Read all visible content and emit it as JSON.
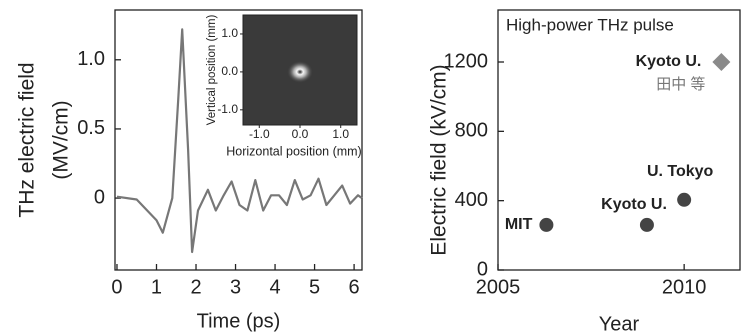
{
  "chart_data": [
    {
      "type": "line",
      "xlabel": "Time (ps)",
      "ylabel": [
        "THz electric field",
        "(MV/cm)"
      ],
      "x": [
        0,
        0.5,
        1.0,
        1.16,
        1.4,
        1.55,
        1.65,
        1.8,
        1.9,
        2.05,
        2.3,
        2.5,
        2.7,
        2.9,
        3.1,
        3.3,
        3.5,
        3.7,
        3.9,
        4.1,
        4.3,
        4.5,
        4.7,
        4.9,
        5.1,
        5.3,
        5.5,
        5.7,
        5.9,
        6.1,
        6.2
      ],
      "series": [
        {
          "color": "#777777",
          "values": [
            0.01,
            -0.01,
            -0.16,
            -0.25,
            0,
            0.71,
            1.22,
            0.35,
            -0.39,
            -0.09,
            0.06,
            -0.09,
            0.02,
            0.12,
            -0.05,
            -0.09,
            0.13,
            -0.09,
            0.02,
            0.02,
            -0.05,
            0.13,
            -0.01,
            0.02,
            0.14,
            -0.05,
            0.02,
            0.09,
            -0.04,
            0.02,
            0
          ]
        }
      ],
      "xlim": [
        -0.05,
        6.2
      ],
      "xticks": [
        0,
        1,
        2,
        3,
        4,
        5,
        6
      ],
      "ylim": [
        -0.52,
        1.36
      ],
      "yticks": [
        0,
        0.5,
        {
          "value": 1,
          "label": "1.0"
        }
      ],
      "inset": {
        "xlabel": "Horizontal position (mm)",
        "ylabel": "Vertical position (mm)",
        "xlim": [
          -1.4,
          1.4
        ],
        "ylim": [
          -1.4,
          1.5
        ],
        "xticks": [
          {
            "value": -1,
            "label": "-1.0"
          },
          {
            "value": 0,
            "label": "0.0"
          },
          {
            "value": 1,
            "label": "1.0"
          }
        ],
        "yticks": [
          {
            "value": -1,
            "label": "-1.0"
          },
          {
            "value": 0,
            "label": "0.0"
          },
          {
            "value": 1,
            "label": "1.0"
          }
        ]
      }
    },
    {
      "type": "scatter",
      "title": "High-power THz pulse",
      "xlabel": "Year",
      "ylabel": "Electric field (kV/cm)",
      "series": [
        {
          "marker": "circle",
          "color": "#444444",
          "x": [
            2006.3,
            2009.0,
            2010.0
          ],
          "values": [
            260,
            260,
            405
          ],
          "labels": [
            "MIT",
            "Kyoto U.",
            "U. Tokyo"
          ]
        },
        {
          "marker": "diamond",
          "color": "#8a8a8a",
          "x": [
            2011.0
          ],
          "values": [
            1200
          ],
          "labels": [
            "Kyoto U."
          ],
          "sublabel": "田中 等"
        }
      ],
      "xlim": [
        2005,
        2011.5
      ],
      "xticks": [
        2005,
        2010
      ],
      "ylim": [
        0,
        1500
      ],
      "yticks": [
        0,
        400,
        800,
        1200
      ]
    }
  ]
}
